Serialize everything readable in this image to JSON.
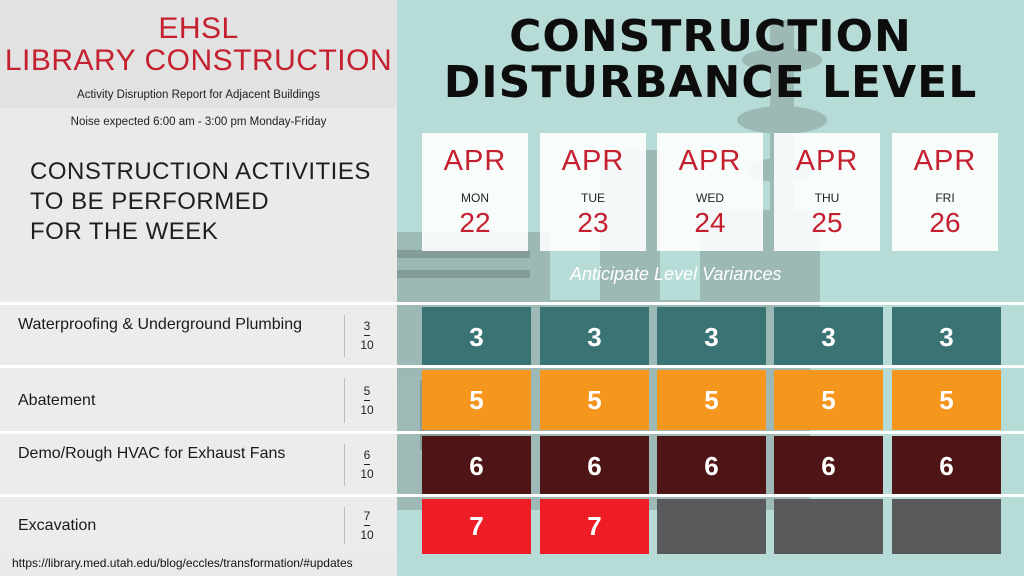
{
  "header": {
    "title_line1": "EHSL",
    "title_line2": "LIBRARY CONSTRUCTION",
    "subtitle": "Activity Disruption Report for Adjacent Buildings",
    "noise_note": "Noise expected 6:00 am - 3:00 pm Monday-Friday"
  },
  "activities_heading": [
    "CONSTRUCTION ACTIVITIES",
    "TO BE PERFORMED",
    "FOR THE WEEK"
  ],
  "main_title": [
    "CONSTRUCTION",
    "DISTURBANCE LEVEL"
  ],
  "dates": [
    {
      "month": "APR",
      "weekday": "MON",
      "day": "22"
    },
    {
      "month": "APR",
      "weekday": "TUE",
      "day": "23"
    },
    {
      "month": "APR",
      "weekday": "WED",
      "day": "24"
    },
    {
      "month": "APR",
      "weekday": "THU",
      "day": "25"
    },
    {
      "month": "APR",
      "weekday": "FRI",
      "day": "26"
    }
  ],
  "variance_note": "Anticipate Level Variances",
  "activities": [
    {
      "name": "Waterproofing & Underground Plumbing",
      "level_num": "3",
      "level_den": "10",
      "color": "#3a7373",
      "cells": [
        "3",
        "3",
        "3",
        "3",
        "3"
      ]
    },
    {
      "name": "Abatement",
      "level_num": "5",
      "level_den": "10",
      "color": "#f5961e",
      "cells": [
        "5",
        "5",
        "5",
        "5",
        "5"
      ]
    },
    {
      "name": "Demo/Rough HVAC for Exhaust Fans",
      "level_num": "6",
      "level_den": "10",
      "color": "#4e1516",
      "cells": [
        "6",
        "6",
        "6",
        "6",
        "6"
      ]
    },
    {
      "name": "Excavation",
      "level_num": "7",
      "level_den": "10",
      "color": "#ee1c25",
      "cells": [
        "7",
        "7",
        "",
        "",
        ""
      ]
    }
  ],
  "inactive_color": "#5a5a5c",
  "footer_url": "https://library.med.utah.edu/blog/eccles/transformation/#updates"
}
